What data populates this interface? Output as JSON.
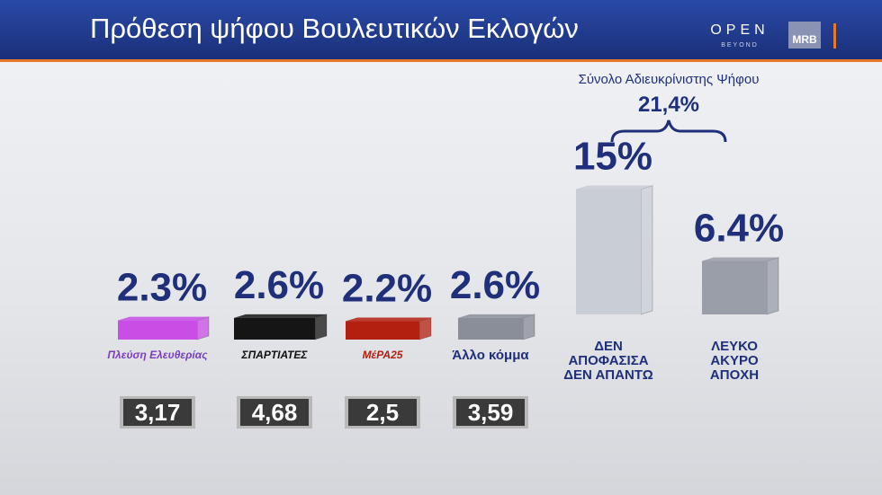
{
  "header": {
    "title": "Πρόθεση ψήφου Βουλευτικών Εκλογών",
    "brand": "OPEN",
    "brand_sub": "BEYOND",
    "pollster": "MRB"
  },
  "chart_data": {
    "type": "bar",
    "categories": [
      "Πλεύση Ελευθερίας",
      "ΣΠΑΡΤΙΑΤΕΣ",
      "ΜέΡΑ25",
      "Άλλο κόμμα",
      "ΔΕΝ\nΑΠΟΦΑΣΙΣΑ\nΔΕΝ ΑΠΑΝΤΩ",
      "ΛΕΥΚΟ\nΑΚΥΡΟ\nΑΠΟΧΗ"
    ],
    "values": [
      2.3,
      2.6,
      2.2,
      2.6,
      15,
      6.4
    ],
    "value_labels": [
      "2.3%",
      "2.6%",
      "2.2%",
      "2.6%",
      "15%",
      "6.4%"
    ],
    "colors": [
      "#c84ee6",
      "#151515",
      "#b3200f",
      "#8a8e98",
      "#c9cdd6",
      "#9a9ea8"
    ],
    "previous": {
      "values": [
        3.17,
        4.68,
        2.5,
        3.59
      ],
      "value_labels": [
        "3,17",
        "4,68",
        "2,5",
        "3,59"
      ]
    },
    "annotation": {
      "text": "Σύνολο Αδιευκρίνιστης Ψήφου",
      "value": 21.4,
      "value_label": "21,4%"
    }
  }
}
